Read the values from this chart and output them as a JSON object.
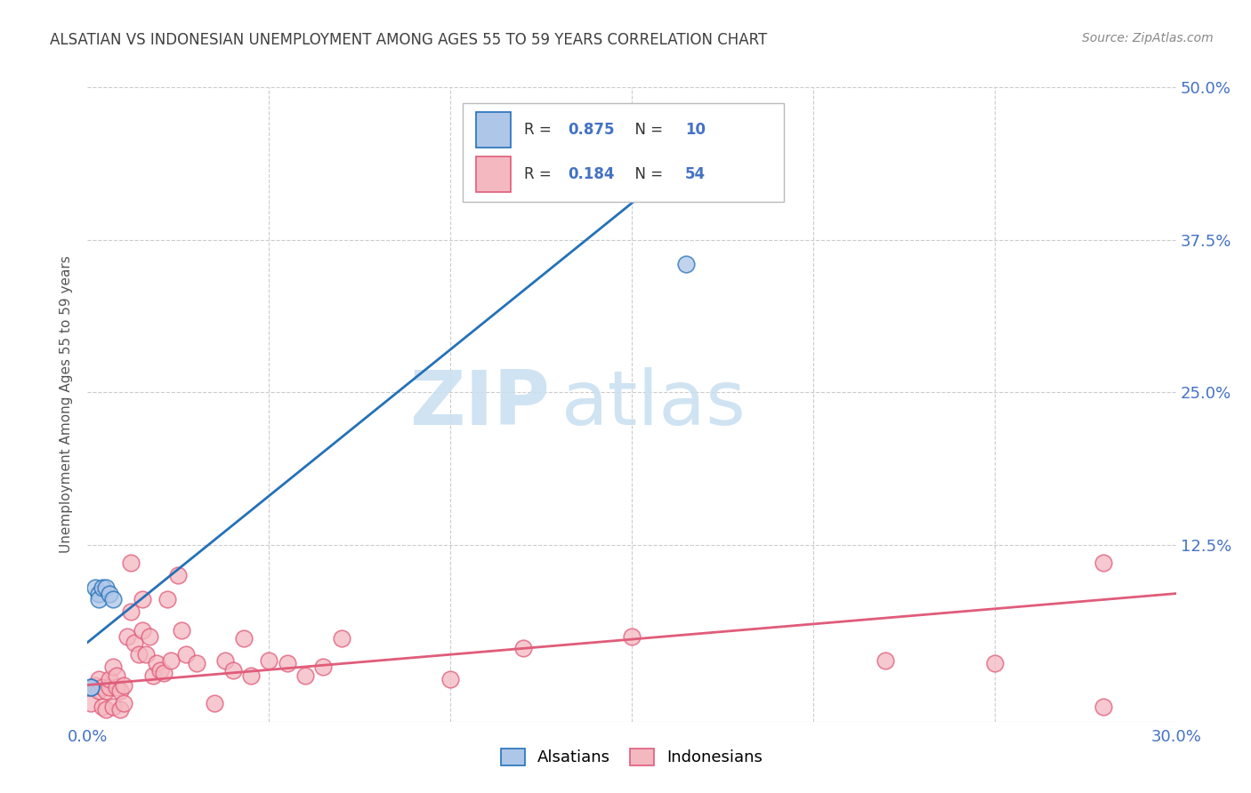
{
  "title": "ALSATIAN VS INDONESIAN UNEMPLOYMENT AMONG AGES 55 TO 59 YEARS CORRELATION CHART",
  "source": "Source: ZipAtlas.com",
  "ylabel": "Unemployment Among Ages 55 to 59 years",
  "xlim": [
    0.0,
    0.3
  ],
  "ylim": [
    -0.02,
    0.5
  ],
  "alsatian_color": "#aec6e8",
  "alsatian_line_color": "#2471b8",
  "indonesian_color": "#f4b8c1",
  "indonesian_line_color": "#e05c7a",
  "legend_R_alsatian": "0.875",
  "legend_N_alsatian": "10",
  "legend_R_indonesian": "0.184",
  "legend_N_indonesian": "54",
  "alsatian_x": [
    0.001,
    0.001,
    0.002,
    0.003,
    0.003,
    0.004,
    0.005,
    0.006,
    0.007,
    0.165
  ],
  "alsatian_y": [
    0.008,
    0.008,
    0.09,
    0.085,
    0.08,
    0.09,
    0.09,
    0.085,
    0.08,
    0.355
  ],
  "indonesian_x": [
    0.001,
    0.002,
    0.003,
    0.003,
    0.004,
    0.004,
    0.005,
    0.005,
    0.006,
    0.006,
    0.007,
    0.007,
    0.008,
    0.008,
    0.009,
    0.009,
    0.01,
    0.01,
    0.011,
    0.012,
    0.012,
    0.013,
    0.014,
    0.015,
    0.015,
    0.016,
    0.017,
    0.018,
    0.019,
    0.02,
    0.021,
    0.022,
    0.023,
    0.025,
    0.026,
    0.027,
    0.03,
    0.035,
    0.038,
    0.04,
    0.043,
    0.045,
    0.05,
    0.055,
    0.06,
    0.065,
    0.07,
    0.1,
    0.12,
    0.15,
    0.22,
    0.25,
    0.28,
    0.28
  ],
  "indonesian_y": [
    -0.005,
    0.01,
    0.005,
    0.015,
    -0.008,
    0.008,
    -0.01,
    0.005,
    0.008,
    0.015,
    -0.008,
    0.025,
    0.008,
    0.018,
    -0.01,
    0.005,
    -0.005,
    0.01,
    0.05,
    0.07,
    0.11,
    0.045,
    0.035,
    0.08,
    0.055,
    0.035,
    0.05,
    0.018,
    0.028,
    0.022,
    0.02,
    0.08,
    0.03,
    0.1,
    0.055,
    0.035,
    0.028,
    -0.005,
    0.03,
    0.022,
    0.048,
    0.018,
    0.03,
    0.028,
    0.018,
    0.025,
    0.048,
    0.015,
    0.04,
    0.05,
    0.03,
    0.028,
    -0.008,
    0.11
  ],
  "alsatian_trend_x": [
    0.0,
    0.175
  ],
  "alsatian_trend_y": [
    0.045,
    0.465
  ],
  "indonesian_trend_x": [
    0.0,
    0.3
  ],
  "indonesian_trend_y": [
    0.01,
    0.085
  ],
  "watermark_ZIP": "ZIP",
  "watermark_atlas": "atlas",
  "background_color": "#ffffff",
  "grid_color": "#cccccc",
  "grid_style": "--",
  "tick_color": "#4472c4",
  "title_color": "#404040",
  "source_color": "#888888"
}
